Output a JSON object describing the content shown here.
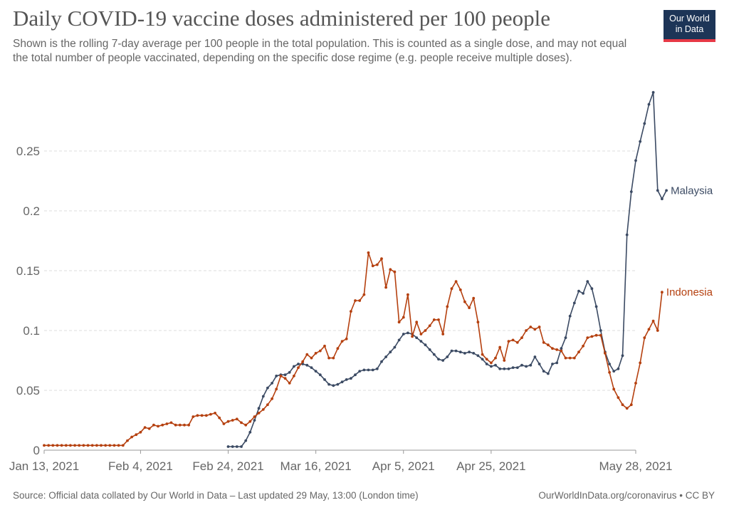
{
  "header": {
    "title": "Daily COVID-19 vaccine doses administered per 100 people",
    "subtitle": "Shown is the rolling 7-day average per 100 people in the total population. This is counted as a single dose, and may not equal the total number of people vaccinated, depending on the specific dose regime (e.g. people receive multiple doses).",
    "logo_line1": "Our World",
    "logo_line2": "in Data"
  },
  "footer": {
    "source": "Source: Official data collated by Our World in Data – Last updated 29 May, 13:00 (London time)",
    "credit": "OurWorldInData.org/coronavirus • CC BY"
  },
  "colors": {
    "malaysia": "#3b4a63",
    "indonesia": "#b5400f",
    "grid": "#dddddd",
    "axis": "#666666"
  },
  "chart_data": {
    "type": "line",
    "title": "Daily COVID-19 vaccine doses administered per 100 people",
    "x_start": "2021-01-13",
    "x_end": "2021-05-28",
    "ylim": [
      0,
      0.3
    ],
    "yticks": [
      0,
      0.05,
      0.1,
      0.15,
      0.2,
      0.25
    ],
    "ytick_labels": [
      "0",
      "0.05",
      "0.1",
      "0.15",
      "0.2",
      "0.25"
    ],
    "xticks": [
      {
        "date": "2021-01-13",
        "label": "Jan 13, 2021"
      },
      {
        "date": "2021-02-04",
        "label": "Feb 4, 2021"
      },
      {
        "date": "2021-02-24",
        "label": "Feb 24, 2021"
      },
      {
        "date": "2021-03-16",
        "label": "Mar 16, 2021"
      },
      {
        "date": "2021-04-05",
        "label": "Apr 5, 2021"
      },
      {
        "date": "2021-04-25",
        "label": "Apr 25, 2021"
      },
      {
        "date": "2021-05-28",
        "label": "May 28, 2021"
      }
    ],
    "grid": true,
    "series": [
      {
        "name": "Malaysia",
        "color": "#3b4a63",
        "start_date": "2021-02-24",
        "values": [
          0.003,
          0.003,
          0.003,
          0.003,
          0.008,
          0.015,
          0.025,
          0.035,
          0.045,
          0.052,
          0.056,
          0.062,
          0.063,
          0.063,
          0.065,
          0.07,
          0.072,
          0.072,
          0.071,
          0.069,
          0.066,
          0.063,
          0.059,
          0.055,
          0.054,
          0.055,
          0.057,
          0.059,
          0.06,
          0.063,
          0.066,
          0.067,
          0.067,
          0.067,
          0.068,
          0.074,
          0.078,
          0.082,
          0.086,
          0.092,
          0.097,
          0.098,
          0.097,
          0.094,
          0.091,
          0.088,
          0.084,
          0.08,
          0.076,
          0.075,
          0.078,
          0.083,
          0.083,
          0.082,
          0.081,
          0.082,
          0.081,
          0.079,
          0.076,
          0.072,
          0.07,
          0.071,
          0.068,
          0.068,
          0.068,
          0.069,
          0.069,
          0.071,
          0.07,
          0.071,
          0.078,
          0.072,
          0.066,
          0.064,
          0.072,
          0.073,
          0.085,
          0.094,
          0.112,
          0.123,
          0.133,
          0.131,
          0.141,
          0.135,
          0.12,
          0.1,
          0.082,
          0.072,
          0.066,
          0.068,
          0.079,
          0.18,
          0.216,
          0.242,
          0.258,
          0.273,
          0.289,
          0.299,
          0.217,
          0.21,
          0.217
        ]
      },
      {
        "name": "Indonesia",
        "color": "#b5400f",
        "start_date": "2021-01-13",
        "values": [
          0.004,
          0.004,
          0.004,
          0.004,
          0.004,
          0.004,
          0.004,
          0.004,
          0.004,
          0.004,
          0.004,
          0.004,
          0.004,
          0.004,
          0.004,
          0.004,
          0.004,
          0.004,
          0.004,
          0.008,
          0.011,
          0.013,
          0.015,
          0.019,
          0.018,
          0.021,
          0.02,
          0.021,
          0.022,
          0.023,
          0.021,
          0.021,
          0.021,
          0.021,
          0.028,
          0.029,
          0.029,
          0.029,
          0.03,
          0.031,
          0.027,
          0.022,
          0.024,
          0.025,
          0.026,
          0.023,
          0.021,
          0.024,
          0.028,
          0.031,
          0.034,
          0.038,
          0.043,
          0.051,
          0.062,
          0.06,
          0.056,
          0.062,
          0.069,
          0.074,
          0.08,
          0.077,
          0.081,
          0.083,
          0.087,
          0.077,
          0.077,
          0.085,
          0.091,
          0.093,
          0.116,
          0.125,
          0.125,
          0.13,
          0.165,
          0.154,
          0.155,
          0.16,
          0.136,
          0.151,
          0.149,
          0.107,
          0.111,
          0.13,
          0.095,
          0.107,
          0.097,
          0.1,
          0.104,
          0.109,
          0.109,
          0.097,
          0.12,
          0.135,
          0.141,
          0.134,
          0.124,
          0.119,
          0.127,
          0.107,
          0.08,
          0.076,
          0.073,
          0.077,
          0.086,
          0.075,
          0.091,
          0.092,
          0.09,
          0.094,
          0.1,
          0.103,
          0.101,
          0.103,
          0.09,
          0.088,
          0.085,
          0.084,
          0.083,
          0.077,
          0.077,
          0.077,
          0.082,
          0.087,
          0.094,
          0.095,
          0.096,
          0.096,
          0.081,
          0.065,
          0.051,
          0.044,
          0.038,
          0.035,
          0.038,
          0.056,
          0.073,
          0.094,
          0.101,
          0.108,
          0.1,
          0.132
        ]
      }
    ]
  }
}
